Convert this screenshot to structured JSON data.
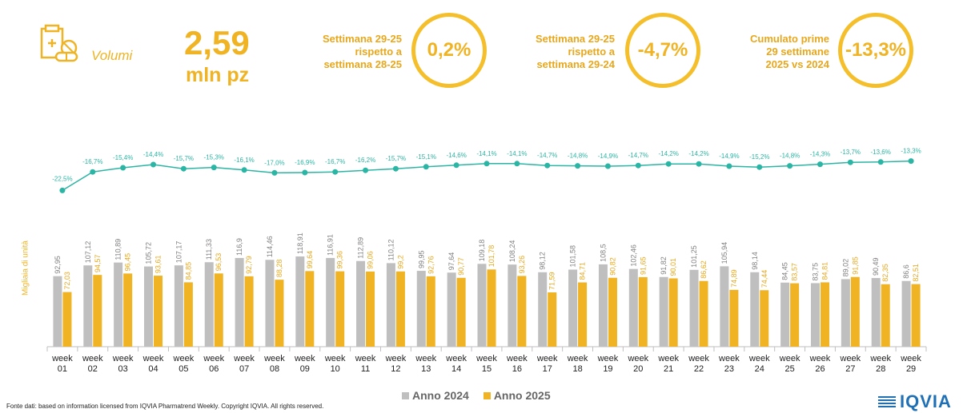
{
  "header": {
    "volumi_label": "Volumi",
    "kpi_value": "2,59",
    "kpi_unit": "mln pz",
    "kpis": [
      {
        "text_lines": [
          "Settimana 29-25",
          "rispetto a",
          "settimana 28-25"
        ],
        "value": "0,2%"
      },
      {
        "text_lines": [
          "Settimana 29-25",
          "rispetto a",
          "settimana 29-24"
        ],
        "value": "-4,7%"
      },
      {
        "text_lines": [
          "Cumulato prime",
          "29 settimane",
          "2025 vs 2024"
        ],
        "value": "-13,3%"
      }
    ]
  },
  "colors": {
    "accent": "#f0b323",
    "series_2024": "#bfbfbf",
    "series_2025": "#f0b323",
    "line": "#2bb5a4",
    "logo": "#1f6fb5"
  },
  "chart_data": {
    "type": "bar",
    "ylabel": "Migliaia di unità",
    "categories": [
      "week 01",
      "week 02",
      "week 03",
      "week 04",
      "week 05",
      "week 06",
      "week 07",
      "week 08",
      "week 09",
      "week 10",
      "week 11",
      "week 12",
      "week 13",
      "week 14",
      "week 15",
      "week 16",
      "week 17",
      "week 18",
      "week 19",
      "week 20",
      "week 21",
      "week 22",
      "week 23",
      "week 24",
      "week 25",
      "week 26",
      "week 27",
      "week 28",
      "week 29"
    ],
    "series": [
      {
        "name": "Anno 2024",
        "values": [
          92.95,
          107.12,
          110.89,
          105.72,
          107.17,
          111.33,
          116.9,
          114.46,
          118.91,
          116.91,
          112.89,
          110.12,
          99.95,
          97.64,
          109.18,
          108.24,
          98.12,
          101.58,
          108.5,
          102.46,
          91.82,
          101.25,
          105.94,
          98.14,
          84.45,
          83.75,
          89.02,
          90.49,
          86.6
        ],
        "labels": [
          "92,95",
          "107,12",
          "110,89",
          "105,72",
          "107,17",
          "111,33",
          "116,9",
          "114,46",
          "118,91",
          "116,91",
          "112,89",
          "110,12",
          "99,95",
          "97,64",
          "109,18",
          "108,24",
          "98,12",
          "101,58",
          "108,5",
          "102,46",
          "91,82",
          "101,25",
          "105,94",
          "98,14",
          "84,45",
          "83,75",
          "89,02",
          "90,49",
          "86,6"
        ]
      },
      {
        "name": "Anno 2025",
        "values": [
          72.03,
          94.57,
          96.45,
          93.61,
          84.85,
          96.53,
          92.79,
          88.28,
          99.64,
          99.36,
          99.06,
          99.2,
          92.76,
          90.77,
          101.78,
          93.26,
          71.59,
          84.71,
          90.82,
          91.65,
          90.01,
          86.62,
          74.89,
          74.44,
          83.57,
          84.81,
          91.85,
          82.35,
          82.51
        ],
        "labels": [
          "72,03",
          "94,57",
          "96,45",
          "93,61",
          "84,85",
          "96,53",
          "92,79",
          "88,28",
          "99,64",
          "99,36",
          "99,06",
          "99,2",
          "92,76",
          "90,77",
          "101,78",
          "93,26",
          "71,59",
          "84,71",
          "90,82",
          "91,65",
          "90,01",
          "86,62",
          "74,89",
          "74,44",
          "83,57",
          "84,81",
          "91,85",
          "82,35",
          "82,51"
        ]
      }
    ],
    "variation": {
      "values": [
        -22.5,
        -16.7,
        -15.4,
        -14.4,
        -15.7,
        -15.3,
        -16.1,
        -17.0,
        -16.9,
        -16.7,
        -16.2,
        -15.7,
        -15.1,
        -14.6,
        -14.1,
        -14.1,
        -14.7,
        -14.8,
        -14.9,
        -14.7,
        -14.2,
        -14.2,
        -14.9,
        -15.2,
        -14.8,
        -14.3,
        -13.7,
        -13.6,
        -13.3
      ],
      "labels": [
        "-22,5%",
        "-16,7%",
        "-15,4%",
        "-14,4%",
        "-15,7%",
        "-15,3%",
        "-16,1%",
        "-17,0%",
        "-16,9%",
        "-16,7%",
        "-16,2%",
        "-15,7%",
        "-15,1%",
        "-14,6%",
        "-14,1%",
        "-14,1%",
        "-14,7%",
        "-14,8%",
        "-14,9%",
        "-14,7%",
        "-14,2%",
        "-14,2%",
        "-14,9%",
        "-15,2%",
        "-14,8%",
        "-14,3%",
        "-13,7%",
        "-13,6%",
        "-13,3%"
      ]
    },
    "legend_position": "bottom"
  },
  "legend": {
    "items": [
      "Anno 2024",
      "Anno 2025"
    ]
  },
  "footer": {
    "source": "Fonte dati: based on information licensed from IQVIA Pharmatrend Weekly. Copyright IQVIA. All rights reserved.",
    "logo": "IQVIA"
  }
}
